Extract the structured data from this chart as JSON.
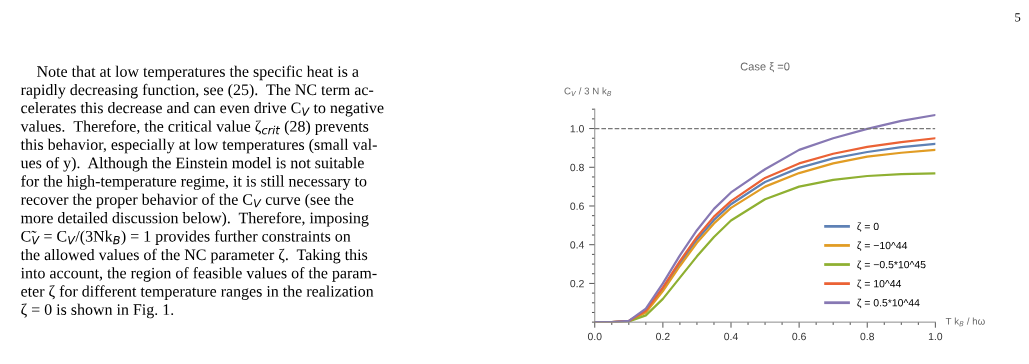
{
  "chart_data": {
    "type": "line",
    "title": "Case ξ =0",
    "xlabel": "T k$_{B}$ / hω",
    "ylabel": "C$_{V}$ / 3 N k$_{B}$",
    "x": [
      0,
      0.05,
      0.1,
      0.15,
      0.2,
      0.25,
      0.3,
      0.35,
      0.4,
      0.5,
      0.6,
      0.7,
      0.8,
      0.9,
      1.0
    ],
    "series": [
      {
        "name": "ζ = 0",
        "color": "#5e81b5",
        "values": [
          0,
          0,
          0.005,
          0.056,
          0.171,
          0.304,
          0.426,
          0.528,
          0.609,
          0.724,
          0.797,
          0.846,
          0.879,
          0.904,
          0.921
        ]
      },
      {
        "name": "ζ = −10^44",
        "color": "#e19c24",
        "values": [
          0,
          0,
          0.004,
          0.05,
          0.16,
          0.29,
          0.41,
          0.51,
          0.59,
          0.7,
          0.77,
          0.82,
          0.855,
          0.875,
          0.89
        ]
      },
      {
        "name": "ζ = −0.5*10^45",
        "color": "#8fb032",
        "values": [
          0,
          0,
          0.003,
          0.035,
          0.12,
          0.23,
          0.34,
          0.44,
          0.525,
          0.635,
          0.7,
          0.735,
          0.755,
          0.765,
          0.768
        ]
      },
      {
        "name": "ζ = 10^44",
        "color": "#eb6235",
        "values": [
          0,
          0,
          0.006,
          0.06,
          0.18,
          0.315,
          0.44,
          0.545,
          0.625,
          0.745,
          0.82,
          0.87,
          0.905,
          0.93,
          0.95
        ]
      },
      {
        "name": "ζ = 0.5*10^44",
        "color": "#8778b3",
        "values": [
          0,
          0,
          0.007,
          0.07,
          0.2,
          0.345,
          0.475,
          0.585,
          0.67,
          0.79,
          0.89,
          0.95,
          0.998,
          1.04,
          1.07
        ]
      }
    ],
    "xlim": [
      0,
      1.0
    ],
    "ylim": [
      0,
      1.1
    ],
    "xticks": [
      {
        "value": 0,
        "label": "0.0"
      },
      0.2,
      0.4,
      0.6,
      0.8,
      {
        "value": 1.0,
        "label": "1.0"
      }
    ],
    "yticks": [
      0.2,
      0.4,
      0.6,
      0.8,
      {
        "value": 1.0,
        "label": "1.0"
      }
    ],
    "ref_lines": [
      {
        "axis": "y",
        "value": 1.0,
        "color": "#777777",
        "line_style": "dashed"
      }
    ],
    "legend": "bottom right",
    "grid": false,
    "line_style": "solid",
    "marker": "none",
    "annotations": [
      "5",
      "    Note that at low temperatures the specific heat is a\nrapidly decreasing function, see (25).  The NC term ac-\ncelerates this decrease and can even drive C$_{V}$ to negative\nvalues.  Therefore, the critical value ζ$_{crit}$ (28) prevents\nthis behavior, especially at low temperatures (small val-\nues of y).  Although the Einstein model is not suitable\nfor the high-temperature regime, it is still necessary to\nrecover the proper behavior of the C$_{V}$ curve (see the\nmore detailed discussion below).  Therefore, imposing\nC̃$_{V}$ = C$_{V}$/(3Nk$_{B}$) = 1 provides further constraints on\nthe allowed values of the NC parameter ζ.  Taking this\ninto account, the region of feasible values of the param-\neter ζ for different temperature ranges in the realization\nζ = 0 is shown in Fig. 1."
    ]
  }
}
